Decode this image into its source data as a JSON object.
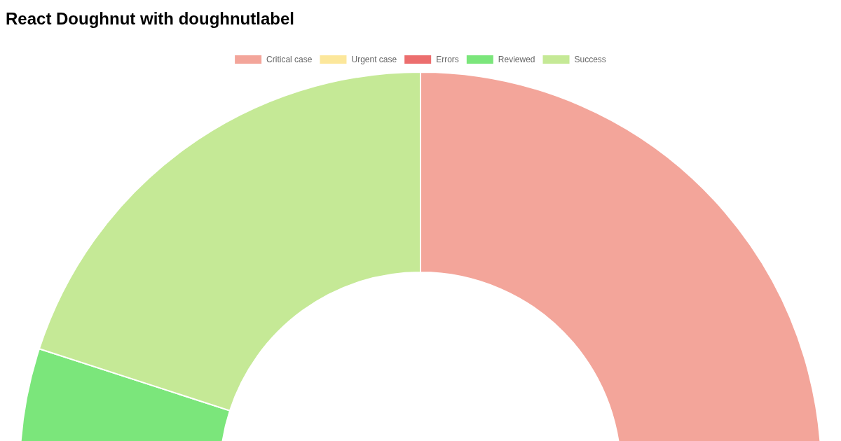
{
  "chart_data": {
    "type": "donut",
    "title": "React Doughnut with doughnutlabel",
    "categories": [
      "Critical case",
      "Urgent case",
      "Errors",
      "Reviewed",
      "Success"
    ],
    "values": [
      55,
      null,
      null,
      25,
      20
    ],
    "colors": [
      "#f3a59a",
      "#fce79b",
      "#ec6e6e",
      "#7be67b",
      "#c5e996"
    ],
    "legend": "top"
  }
}
